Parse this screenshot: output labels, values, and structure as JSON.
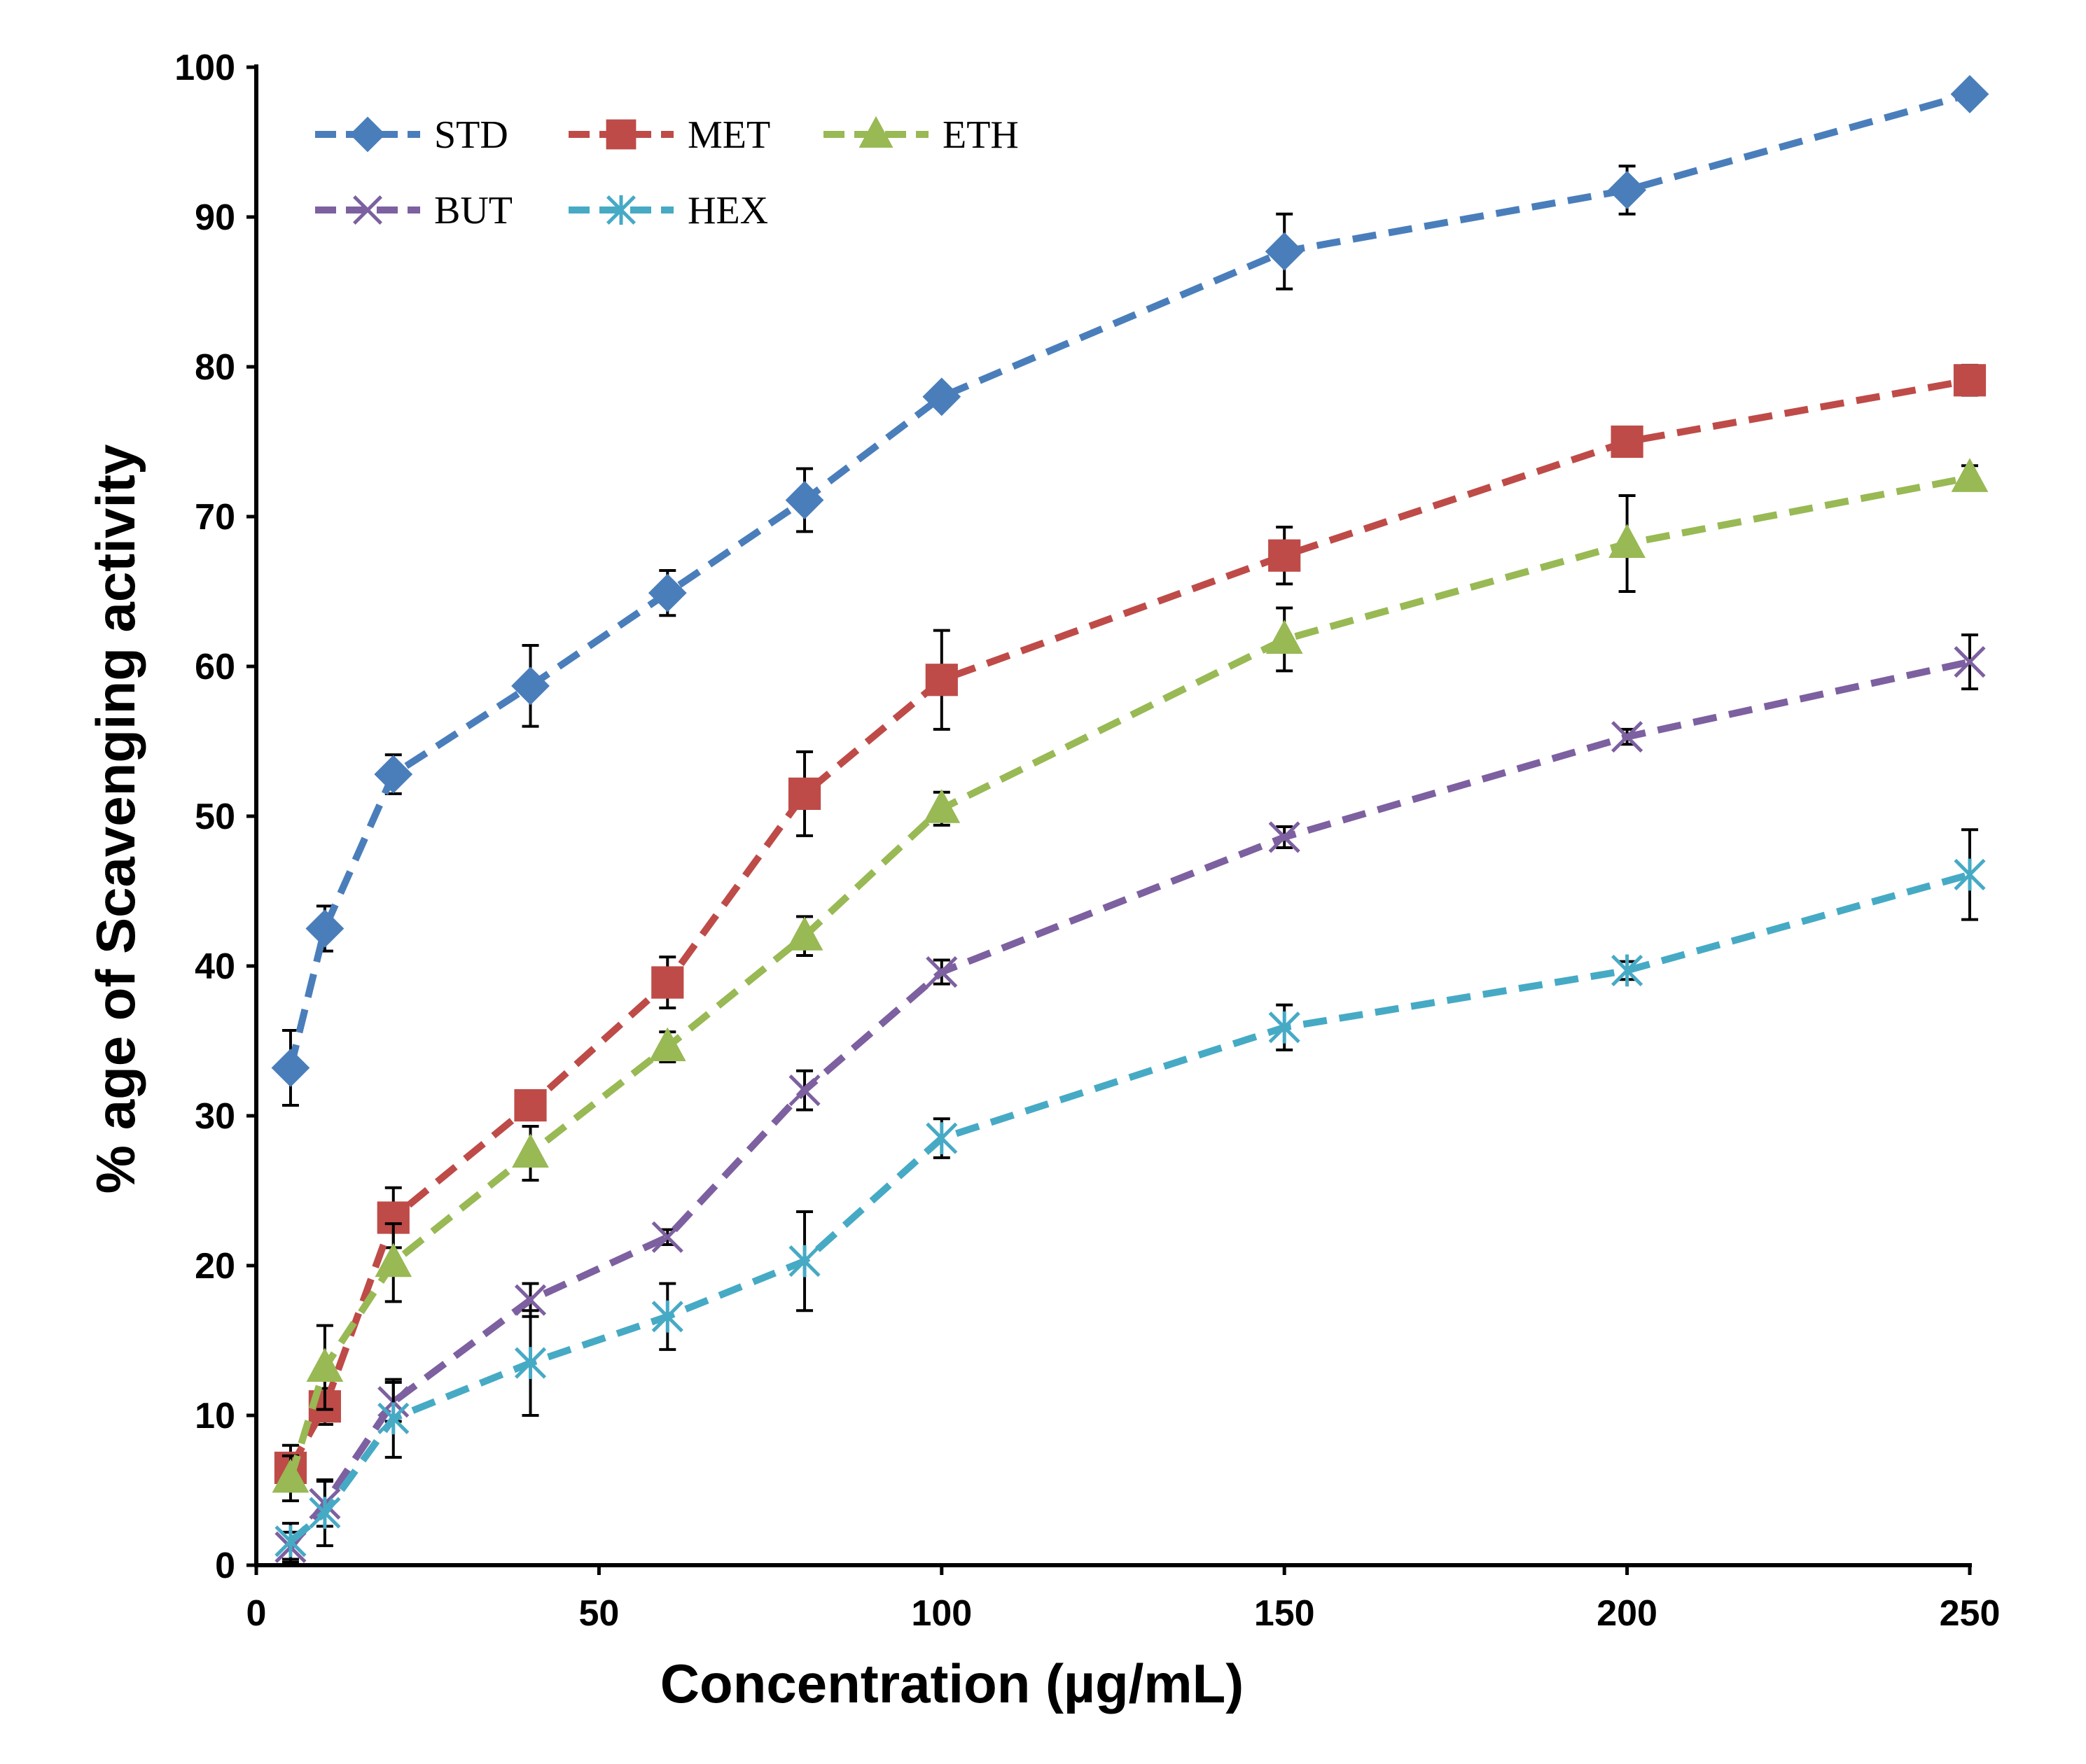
{
  "chart_data": {
    "type": "line",
    "title": "",
    "xlabel": "Concentration  (µg/mL)",
    "ylabel": "% age of  Scavenging activity",
    "xlim": [
      0,
      250
    ],
    "ylim": [
      0,
      100
    ],
    "xticks": [
      0,
      50,
      100,
      150,
      200,
      250
    ],
    "yticks": [
      0,
      10,
      20,
      30,
      40,
      50,
      60,
      70,
      80,
      90,
      100
    ],
    "grid": false,
    "legend_position": "top-left",
    "x": [
      5,
      10,
      20,
      40,
      60,
      80,
      100,
      150,
      200,
      250
    ],
    "series": [
      {
        "name": "STD",
        "color": "#4a7ebb",
        "marker": "diamond",
        "values": [
          33.2,
          42.5,
          52.8,
          58.7,
          64.9,
          71.1,
          78.0,
          87.7,
          91.8,
          98.2
        ],
        "errors": [
          2.5,
          1.5,
          1.3,
          2.7,
          1.5,
          2.1,
          0.5,
          2.5,
          1.6,
          0.5
        ]
      },
      {
        "name": "MET",
        "color": "#be4b48",
        "marker": "square",
        "values": [
          6.5,
          10.6,
          23.2,
          30.7,
          38.9,
          51.5,
          59.1,
          67.4,
          75.0,
          79.1
        ],
        "errors": [
          1.5,
          1.2,
          2.0,
          0.5,
          1.7,
          2.8,
          3.3,
          1.9,
          0.8,
          1.0
        ]
      },
      {
        "name": "ETH",
        "color": "#98b954",
        "marker": "triangle",
        "values": [
          5.8,
          13.2,
          20.2,
          27.5,
          34.6,
          42.0,
          50.5,
          61.8,
          68.2,
          72.6
        ],
        "errors": [
          1.5,
          2.8,
          2.6,
          1.8,
          1.0,
          1.3,
          1.1,
          2.1,
          3.2,
          0.8
        ]
      },
      {
        "name": "BUT",
        "color": "#7d60a0",
        "marker": "x",
        "values": [
          1.2,
          4.1,
          10.9,
          17.7,
          21.9,
          31.7,
          39.6,
          48.6,
          55.3,
          60.3
        ],
        "errors": [
          1.0,
          1.5,
          1.3,
          1.1,
          0.5,
          1.3,
          0.8,
          0.7,
          0.5,
          1.8
        ]
      },
      {
        "name": "HEX",
        "color": "#46aac5",
        "marker": "star",
        "values": [
          1.6,
          3.5,
          9.8,
          13.5,
          16.6,
          20.3,
          28.5,
          35.9,
          39.7,
          46.1
        ],
        "errors": [
          1.2,
          2.2,
          2.6,
          3.5,
          2.2,
          3.3,
          1.3,
          1.5,
          0.6,
          3.0
        ]
      }
    ]
  }
}
